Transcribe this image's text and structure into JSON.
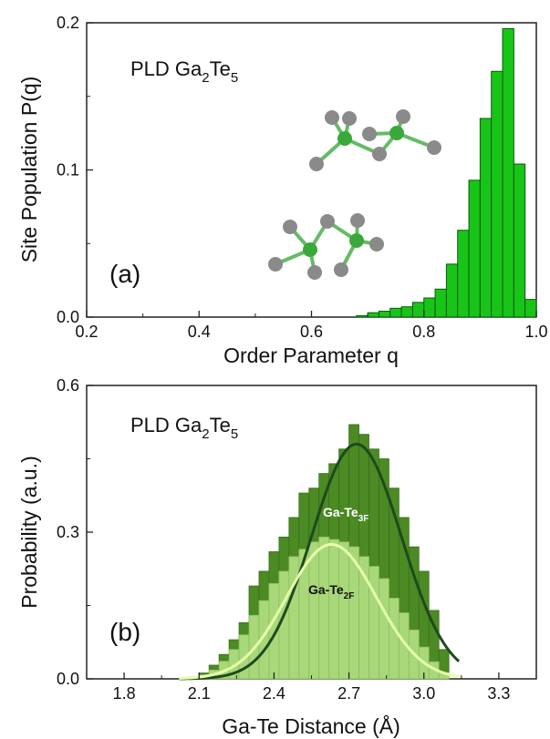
{
  "chart_data": [
    {
      "type": "bar",
      "panel": "(a)",
      "title_main": "PLD Ga",
      "title_sub1": "2",
      "title_mid": "Te",
      "title_sub2": "5",
      "xlabel": "Order Parameter q",
      "ylabel": "Site Population P(q)",
      "xlim": [
        0.2,
        1.0
      ],
      "ylim": [
        0.0,
        0.2
      ],
      "xticks": [
        "0.2",
        "0.4",
        "0.6",
        "0.8",
        "1.0"
      ],
      "yticks": [
        "0.0",
        "0.1",
        "0.2"
      ],
      "bin_width": 0.02,
      "bin_starts": [
        0.68,
        0.7,
        0.72,
        0.74,
        0.76,
        0.78,
        0.8,
        0.82,
        0.84,
        0.86,
        0.88,
        0.9,
        0.92,
        0.94,
        0.96,
        0.98
      ],
      "values": [
        0.001,
        0.003,
        0.004,
        0.006,
        0.007,
        0.01,
        0.013,
        0.019,
        0.036,
        0.059,
        0.093,
        0.135,
        0.167,
        0.196,
        0.104,
        0.012
      ],
      "bar_color": "#19c419",
      "edge_color": "#0b5a0b",
      "inset": "Ga and Te atom ball-and-stick structures"
    },
    {
      "type": "bar",
      "panel": "(b)",
      "title_main": "PLD Ga",
      "title_sub1": "2",
      "title_mid": "Te",
      "title_sub2": "5",
      "xlabel": "Ga-Te Distance (Å)",
      "ylabel": "Probability (a.u.)",
      "xlim": [
        1.65,
        3.45
      ],
      "ylim": [
        0.0,
        0.6
      ],
      "xticks": [
        "1.8",
        "2.1",
        "2.4",
        "2.7",
        "3.0",
        "3.3"
      ],
      "yticks": [
        "0.0",
        "0.3",
        "0.6"
      ],
      "bin_width": 0.04,
      "bin_starts": [
        2.06,
        2.1,
        2.14,
        2.18,
        2.22,
        2.26,
        2.3,
        2.34,
        2.38,
        2.42,
        2.46,
        2.5,
        2.54,
        2.58,
        2.62,
        2.66,
        2.7,
        2.74,
        2.78,
        2.82,
        2.86,
        2.9,
        2.94,
        2.98,
        3.02,
        3.06
      ],
      "series": [
        {
          "name": "Ga-Te3F",
          "label_main": "Ga-Te",
          "label_sub": "3F",
          "values": [
            0.004,
            0.012,
            0.028,
            0.05,
            0.08,
            0.115,
            0.19,
            0.22,
            0.26,
            0.29,
            0.33,
            0.38,
            0.39,
            0.42,
            0.44,
            0.47,
            0.52,
            0.5,
            0.47,
            0.45,
            0.39,
            0.33,
            0.27,
            0.22,
            0.14,
            0.06
          ],
          "color": "#4c8a24",
          "fit_curve_color": "#1e4a1e",
          "fit_peak": 0.48,
          "fit_center": 2.73,
          "fit_sigma": 0.18
        },
        {
          "name": "Ga-Te2F",
          "label_main": "Ga-Te",
          "label_sub": "2F",
          "values": [
            0.002,
            0.008,
            0.018,
            0.036,
            0.06,
            0.09,
            0.13,
            0.16,
            0.195,
            0.22,
            0.25,
            0.265,
            0.28,
            0.29,
            0.285,
            0.28,
            0.27,
            0.25,
            0.23,
            0.205,
            0.165,
            0.135,
            0.1,
            0.065,
            0.035,
            0.012
          ],
          "color": "#a9d87a",
          "fit_curve_color": "#e6ffaa",
          "fit_peak": 0.275,
          "fit_center": 2.63,
          "fit_sigma": 0.18
        }
      ]
    }
  ]
}
